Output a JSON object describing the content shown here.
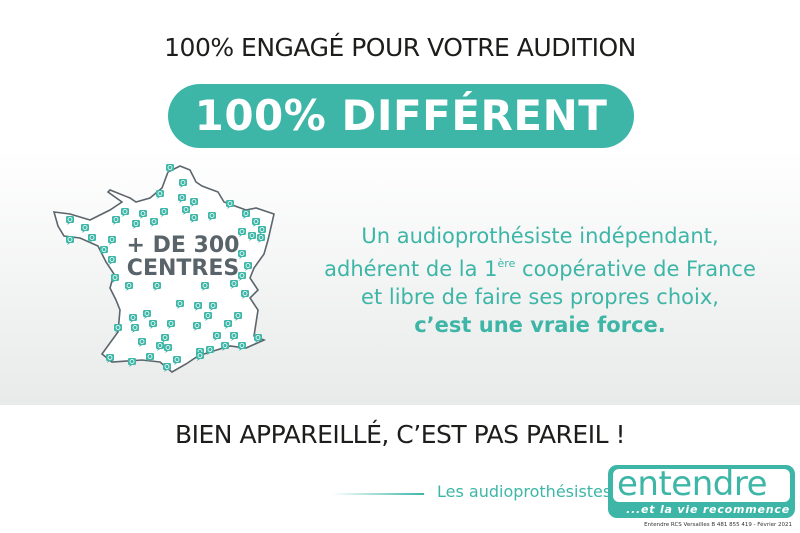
{
  "headline": "100% ENGAGÉ POUR VOTRE AUDITION",
  "pill": "100% DIFFÉRENT",
  "map": {
    "line1": "+ DE 300",
    "line2": "CENTRES",
    "marker_icon": "entendre-e-speech-bubble-icon"
  },
  "body": {
    "line1": "Un audioprothésiste indépendant,",
    "line2_pre": "adhérent de la 1",
    "line2_sup": "ère",
    "line2_post": " coopérative de France",
    "line3": "et libre de faire ses propres choix,",
    "line4": "c’est une vraie force."
  },
  "slogan": "BIEN APPAREILLÉ, C’EST PAS PAREIL !",
  "footer": {
    "les": "Les audioprothésistes",
    "logo_word": "entendre",
    "logo_tag": "...et la vie recommence",
    "legal": "Entendre RCS Versailles B 481 855 419 - Février 2021"
  },
  "colors": {
    "teal": "#3db6a7",
    "text": "#1d1d1b",
    "map_text": "#58636a"
  }
}
